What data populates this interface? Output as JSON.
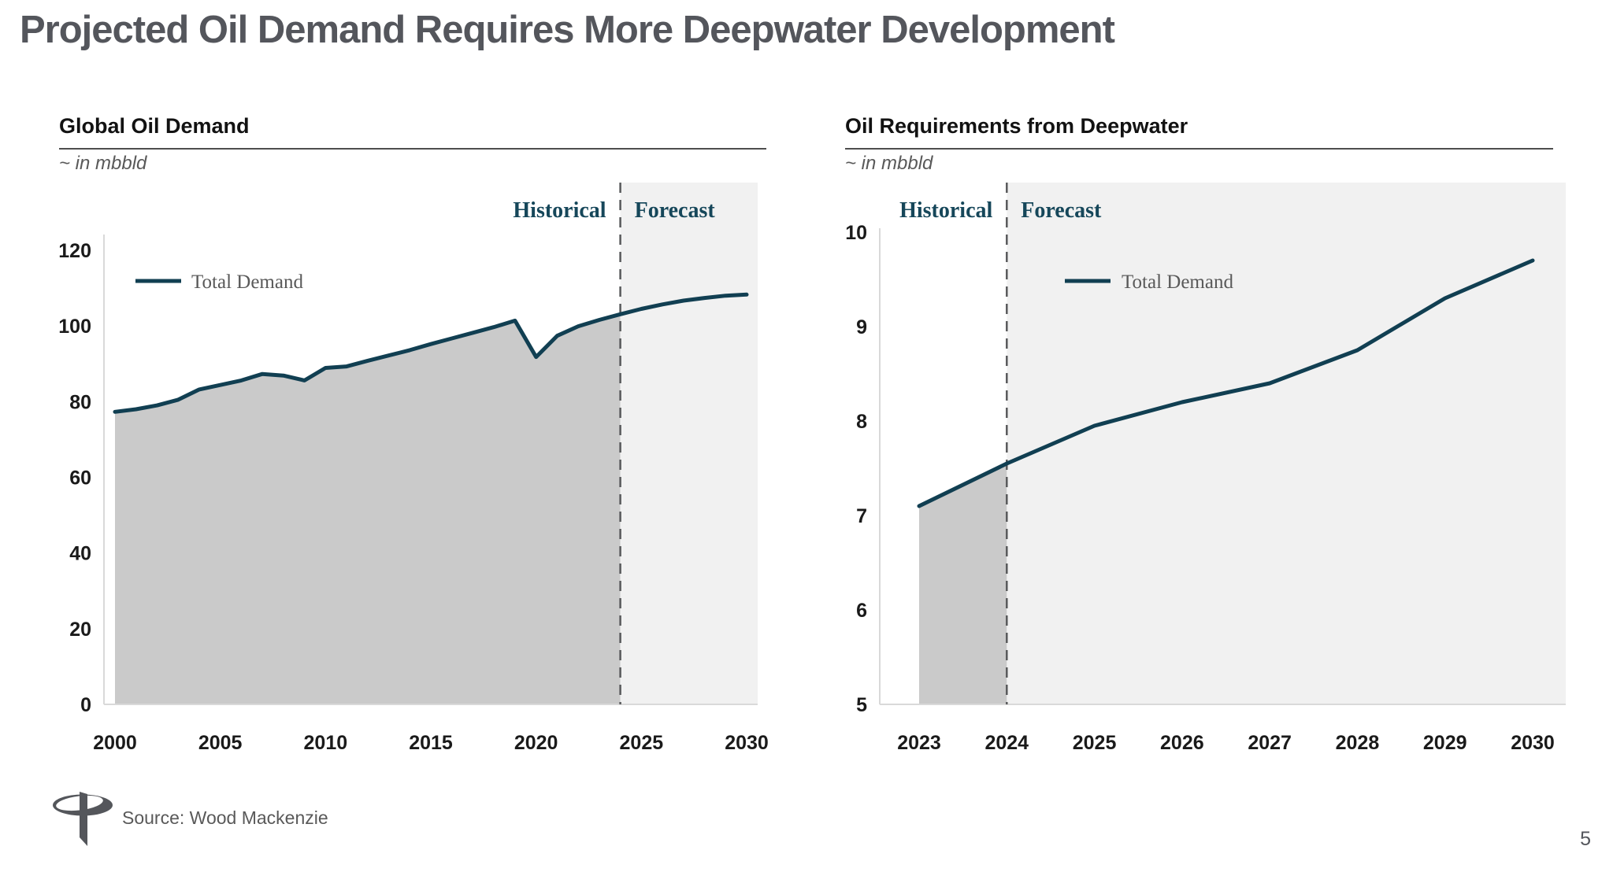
{
  "slide": {
    "title": "Projected Oil Demand Requires More Deepwater Development",
    "source": "Source: Wood Mackenzie",
    "page_number": "5",
    "logo_icon": "tidewater-logo"
  },
  "colors": {
    "line": "#113f52",
    "historical_area": "#cacaca",
    "forecast_band": "#f1f1f1",
    "divider": "#58595b",
    "axis": "#d9d9d9",
    "annotation_text": "#16475a",
    "title_text": "#54565c"
  },
  "chart_data": [
    {
      "type": "area",
      "title": "Global Oil Demand",
      "unit_note": "~ in mbbld",
      "legend": "Total Demand",
      "annotations": {
        "historical": "Historical",
        "forecast": "Forecast"
      },
      "xlim": [
        2000,
        2030
      ],
      "ylim": [
        0,
        120
      ],
      "split_year": 2024,
      "x_ticks": [
        2000,
        2005,
        2010,
        2015,
        2020,
        2025,
        2030
      ],
      "y_ticks": [
        0,
        20,
        40,
        60,
        80,
        100,
        120
      ],
      "x": [
        2000,
        2001,
        2002,
        2003,
        2004,
        2005,
        2006,
        2007,
        2008,
        2009,
        2010,
        2011,
        2012,
        2013,
        2014,
        2015,
        2016,
        2017,
        2018,
        2019,
        2020,
        2021,
        2022,
        2023,
        2024,
        2025,
        2026,
        2027,
        2028,
        2029,
        2030
      ],
      "series": [
        {
          "name": "Total Demand",
          "values": [
            77.3,
            78.0,
            79.0,
            80.5,
            83.2,
            84.4,
            85.6,
            87.3,
            86.9,
            85.6,
            88.9,
            89.3,
            90.8,
            92.2,
            93.6,
            95.2,
            96.7,
            98.2,
            99.7,
            101.4,
            91.8,
            97.4,
            99.9,
            101.6,
            103.1,
            104.5,
            105.7,
            106.7,
            107.4,
            108.0,
            108.3
          ]
        }
      ],
      "legend_position": "top-left-inside",
      "grid": false
    },
    {
      "type": "line",
      "title": "Oil Requirements from Deepwater",
      "unit_note": "~ in mbbld",
      "legend": "Total Demand",
      "annotations": {
        "historical": "Historical",
        "forecast": "Forecast"
      },
      "xlim": [
        2023,
        2030
      ],
      "ylim": [
        5,
        10
      ],
      "split_year": 2024,
      "x_ticks": [
        2023,
        2024,
        2025,
        2026,
        2027,
        2028,
        2029,
        2030
      ],
      "y_ticks": [
        5,
        6,
        7,
        8,
        9,
        10
      ],
      "x": [
        2023,
        2024,
        2025,
        2026,
        2027,
        2028,
        2029,
        2030
      ],
      "series": [
        {
          "name": "Total Demand",
          "values": [
            7.1,
            7.55,
            7.95,
            8.2,
            8.4,
            8.75,
            9.3,
            9.7
          ]
        }
      ],
      "legend_position": "top-center-inside",
      "grid": false
    }
  ]
}
